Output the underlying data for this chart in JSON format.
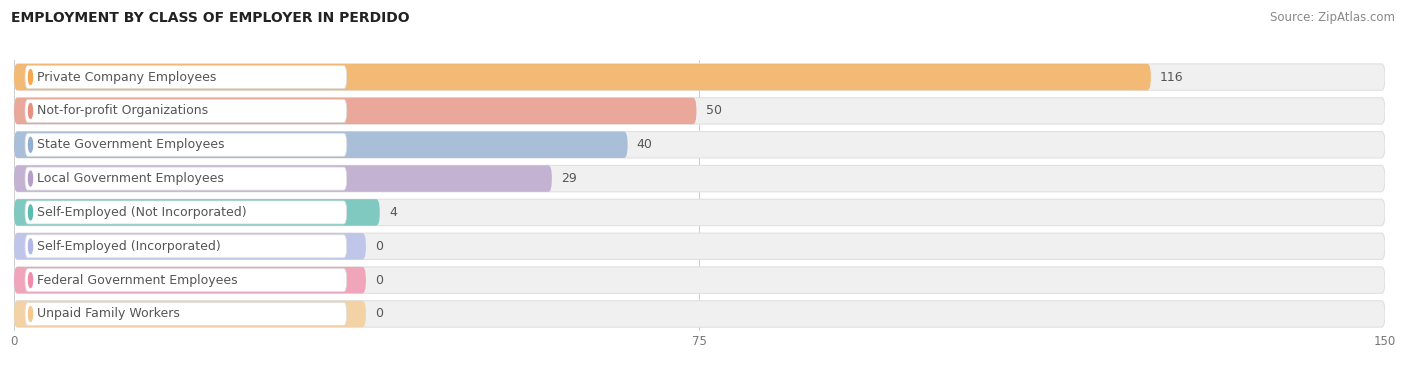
{
  "title": "EMPLOYMENT BY CLASS OF EMPLOYER IN PERDIDO",
  "source": "Source: ZipAtlas.com",
  "categories": [
    "Private Company Employees",
    "Not-for-profit Organizations",
    "State Government Employees",
    "Local Government Employees",
    "Self-Employed (Not Incorporated)",
    "Self-Employed (Incorporated)",
    "Federal Government Employees",
    "Unpaid Family Workers"
  ],
  "values": [
    116,
    50,
    40,
    29,
    4,
    0,
    0,
    0
  ],
  "bar_colors": [
    "#f5a84d",
    "#e8907f",
    "#92aed0",
    "#b59ec9",
    "#5bbcb0",
    "#b0b8e8",
    "#f08caa",
    "#f5c98e"
  ],
  "xlim": [
    0,
    150
  ],
  "xticks": [
    0,
    75,
    150
  ],
  "title_fontsize": 10,
  "source_fontsize": 8.5,
  "label_fontsize": 9,
  "value_fontsize": 9,
  "background_color": "#ffffff",
  "row_bg_color": "#f0f0f0",
  "row_border_color": "#e0e0e0",
  "grid_color": "#cccccc",
  "text_color": "#555555",
  "label_bg_color": "#ffffff"
}
